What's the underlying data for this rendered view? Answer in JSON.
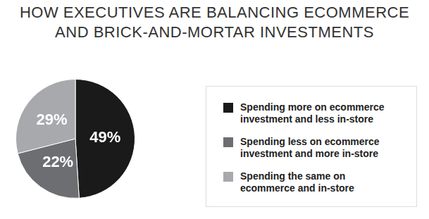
{
  "chart_data": {
    "type": "pie",
    "title": "HOW EXECUTIVES ARE BALANCING ECOMMERCE AND BRICK-AND-MORTAR INVESTMENTS",
    "categories": [
      "Spending more on ecommerce investment and less in-store",
      "Spending less on ecommerce investment and more in-store",
      "Spending the same on ecommerce and in-store"
    ],
    "values": [
      49,
      22,
      29
    ],
    "value_labels": [
      "49%",
      "22%",
      "29%"
    ],
    "colors": [
      "#1a1a1a",
      "#6d6e71",
      "#a7a9ac"
    ],
    "data_labels": true,
    "legend": "right"
  }
}
